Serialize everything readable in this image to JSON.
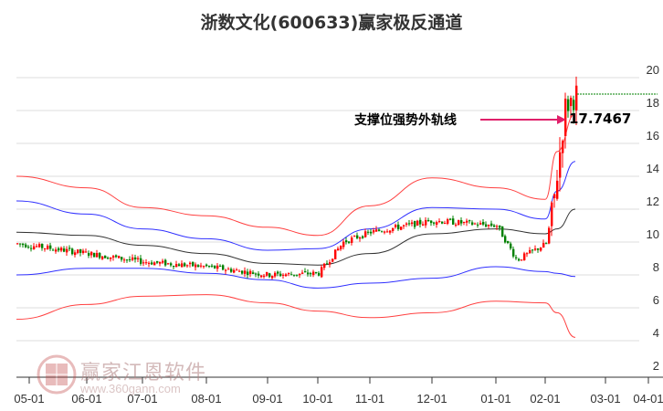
{
  "title": "浙数文化(600633)赢家极反通道",
  "annotation": {
    "label": "支撑位强势外轨线",
    "value": "17.7467",
    "arrow_color": "#e0206a"
  },
  "watermark": {
    "name": "赢家江恩软件",
    "url": "www.360gann.com",
    "logo_chars": [
      "江",
      "赢",
      "恩",
      "家"
    ]
  },
  "colors": {
    "up": "#ff0000",
    "down": "#008000",
    "outer_band": "#ff4040",
    "inner_band": "#3030ff",
    "mid_line": "#333333",
    "grid": "#dddddd",
    "resistance_line": "#008000"
  },
  "chart_data": {
    "type": "candlestick",
    "title": "浙数文化(600633)赢家极反通道",
    "xlabel": "",
    "ylabel": "",
    "ylim": [
      2,
      20
    ],
    "y_ticks": [
      2,
      4,
      6,
      8,
      10,
      12,
      14,
      16,
      18,
      20
    ],
    "x_ticks": [
      "05-01",
      "06-01",
      "07-01",
      "08-01",
      "09-01",
      "10-01",
      "11-01",
      "12-01",
      "01-01",
      "02-01",
      "03-01",
      "04-01"
    ],
    "grid": true,
    "series": [
      {
        "name": "outer_upper (red)",
        "x": [
          "05-01",
          "06-01",
          "07-01",
          "08-01",
          "09-01",
          "10-01",
          "11-01",
          "12-01",
          "01-01",
          "02-01",
          "02-15",
          "02-25"
        ],
        "values": [
          14.0,
          13.3,
          12.1,
          11.6,
          10.9,
          10.4,
          12.2,
          13.9,
          13.3,
          12.6,
          15.5,
          17.8
        ]
      },
      {
        "name": "inner_upper (blue)",
        "x": [
          "05-01",
          "06-01",
          "07-01",
          "08-01",
          "09-01",
          "10-01",
          "11-01",
          "12-01",
          "01-01",
          "02-01",
          "02-15",
          "02-25"
        ],
        "values": [
          12.5,
          11.7,
          10.8,
          10.2,
          9.5,
          9.6,
          10.8,
          12.1,
          12.0,
          11.4,
          13.1,
          14.9
        ]
      },
      {
        "name": "middle (black)",
        "x": [
          "05-01",
          "06-01",
          "07-01",
          "08-01",
          "09-01",
          "10-01",
          "11-01",
          "12-01",
          "01-01",
          "02-01",
          "02-15",
          "02-25"
        ],
        "values": [
          10.6,
          10.4,
          9.8,
          9.3,
          8.7,
          8.6,
          9.3,
          10.5,
          10.8,
          10.5,
          10.8,
          12.0
        ]
      },
      {
        "name": "inner_lower (blue)",
        "x": [
          "05-01",
          "06-01",
          "07-01",
          "08-01",
          "09-01",
          "10-01",
          "11-01",
          "12-01",
          "01-01",
          "02-01",
          "02-15",
          "02-25"
        ],
        "values": [
          8.0,
          8.4,
          8.4,
          8.1,
          7.7,
          7.2,
          7.5,
          7.8,
          8.5,
          8.2,
          8.1,
          7.9
        ]
      },
      {
        "name": "outer_lower (red)",
        "x": [
          "05-01",
          "06-01",
          "07-01",
          "08-01",
          "09-01",
          "10-01",
          "11-01",
          "12-01",
          "01-01",
          "02-01",
          "02-15",
          "02-25"
        ],
        "values": [
          5.3,
          6.2,
          6.7,
          6.8,
          6.3,
          5.8,
          5.4,
          5.7,
          6.4,
          6.3,
          5.7,
          4.2
        ]
      },
      {
        "name": "price (close approx)",
        "x": [
          "05-01",
          "06-01",
          "07-01",
          "08-01",
          "09-01",
          "10-01",
          "10-15",
          "11-01",
          "12-01",
          "01-01",
          "01-20",
          "02-01",
          "02-10",
          "02-20",
          "02-25"
        ],
        "values": [
          9.9,
          9.3,
          8.8,
          8.5,
          8.0,
          8.1,
          10.0,
          10.6,
          11.3,
          11.0,
          8.9,
          9.9,
          12.3,
          18.2,
          19.0
        ]
      }
    ],
    "support_line": {
      "label": "支撑位强势外轨线",
      "value": 17.7467
    },
    "resistance_level": 19.0
  }
}
